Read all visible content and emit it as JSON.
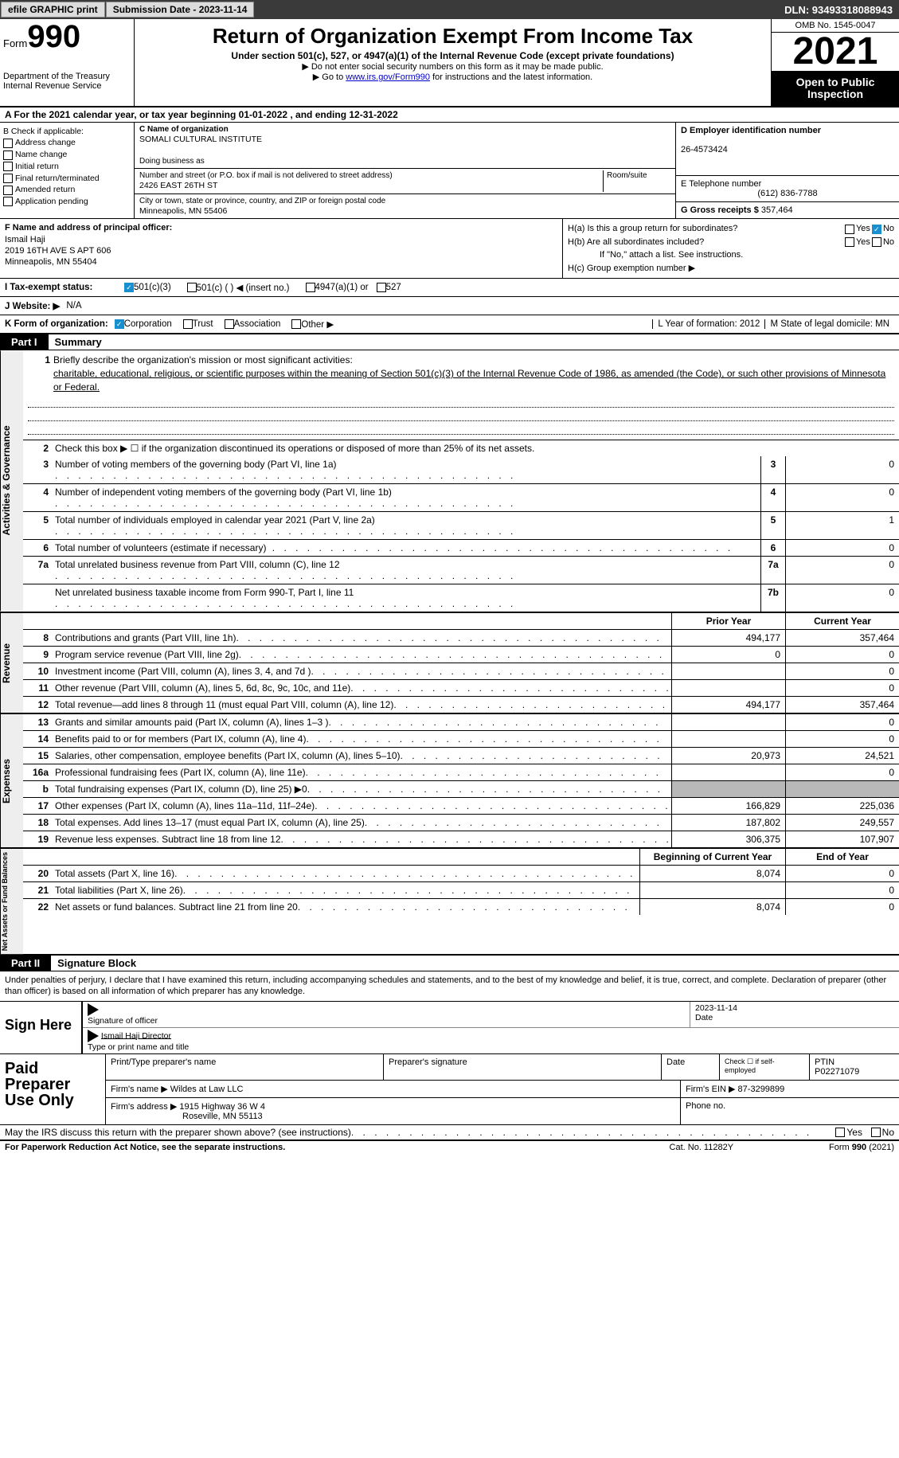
{
  "topbar": {
    "efile": "efile GRAPHIC print",
    "submission": "Submission Date - 2023-11-14",
    "dln": "DLN: 93493318088943"
  },
  "header": {
    "form_word": "Form",
    "form_num": "990",
    "dept": "Department of the Treasury",
    "irs": "Internal Revenue Service",
    "title": "Return of Organization Exempt From Income Tax",
    "subtitle": "Under section 501(c), 527, or 4947(a)(1) of the Internal Revenue Code (except private foundations)",
    "note1": "▶ Do not enter social security numbers on this form as it may be made public.",
    "note2_pre": "▶ Go to ",
    "note2_link": "www.irs.gov/Form990",
    "note2_post": " for instructions and the latest information.",
    "omb": "OMB No. 1545-0047",
    "year": "2021",
    "open": "Open to Public Inspection"
  },
  "rowA": "A For the 2021 calendar year, or tax year beginning 01-01-2022   , and ending 12-31-2022",
  "boxB": {
    "title": "B Check if applicable:",
    "opts": [
      "Address change",
      "Name change",
      "Initial return",
      "Final return/terminated",
      "Amended return",
      "Application pending"
    ]
  },
  "boxC": {
    "name_lbl": "C Name of organization",
    "name": "SOMALI CULTURAL INSTITUTE",
    "dba_lbl": "Doing business as",
    "addr_lbl": "Number and street (or P.O. box if mail is not delivered to street address)",
    "room_lbl": "Room/suite",
    "addr": "2426 EAST 26TH ST",
    "city_lbl": "City or town, state or province, country, and ZIP or foreign postal code",
    "city": "Minneapolis, MN  55406"
  },
  "boxD": {
    "lbl": "D Employer identification number",
    "val": "26-4573424"
  },
  "boxE": {
    "lbl": "E Telephone number",
    "val": "(612) 836-7788"
  },
  "boxG": {
    "lbl": "G Gross receipts $",
    "val": "357,464"
  },
  "boxF": {
    "lbl": "F Name and address of principal officer:",
    "name": "Ismail Haji",
    "addr1": "2019 16TH AVE S APT 606",
    "addr2": "Minneapolis, MN  55404"
  },
  "boxH": {
    "ha": "H(a)  Is this a group return for subordinates?",
    "hb": "H(b)  Are all subordinates included?",
    "hb_note": "If \"No,\" attach a list. See instructions.",
    "hc": "H(c)  Group exemption number ▶",
    "yes": "Yes",
    "no": "No"
  },
  "rowI": {
    "lbl": "I     Tax-exempt status:",
    "o1": "501(c)(3)",
    "o2": "501(c) (  ) ◀ (insert no.)",
    "o3": "4947(a)(1) or",
    "o4": "527"
  },
  "rowJ": {
    "lbl": "J    Website: ▶",
    "val": "N/A"
  },
  "rowK": {
    "lbl": "K Form of organization:",
    "o1": "Corporation",
    "o2": "Trust",
    "o3": "Association",
    "o4": "Other ▶",
    "l": "L Year of formation: 2012",
    "m": "M State of legal domicile: MN"
  },
  "part1": {
    "tag": "Part I",
    "title": "Summary"
  },
  "tabs": {
    "gov": "Activities & Governance",
    "rev": "Revenue",
    "exp": "Expenses",
    "net": "Net Assets or Fund Balances"
  },
  "mission": {
    "lbl": "Briefly describe the organization's mission or most significant activities:",
    "txt": "charitable, educational, religious, or scientific purposes within the meaning of Section 501(c)(3) of the Internal Revenue Code of 1986, as amended (the Code), or such other provisions of Minnesota or Federal."
  },
  "line2": "Check this box ▶ ☐ if the organization discontinued its operations or disposed of more than 25% of its net assets.",
  "lines_gov": [
    {
      "n": "3",
      "t": "Number of voting members of the governing body (Part VI, line 1a)",
      "box": "3",
      "v": "0"
    },
    {
      "n": "4",
      "t": "Number of independent voting members of the governing body (Part VI, line 1b)",
      "box": "4",
      "v": "0"
    },
    {
      "n": "5",
      "t": "Total number of individuals employed in calendar year 2021 (Part V, line 2a)",
      "box": "5",
      "v": "1"
    },
    {
      "n": "6",
      "t": "Total number of volunteers (estimate if necessary)",
      "box": "6",
      "v": "0"
    },
    {
      "n": "7a",
      "t": "Total unrelated business revenue from Part VIII, column (C), line 12",
      "box": "7a",
      "v": "0"
    },
    {
      "n": "",
      "t": "Net unrelated business taxable income from Form 990-T, Part I, line 11",
      "box": "7b",
      "v": "0"
    }
  ],
  "hdr_prior": "Prior Year",
  "hdr_curr": "Current Year",
  "lines_rev": [
    {
      "n": "8",
      "t": "Contributions and grants (Part VIII, line 1h)",
      "p": "494,177",
      "c": "357,464"
    },
    {
      "n": "9",
      "t": "Program service revenue (Part VIII, line 2g)",
      "p": "0",
      "c": "0"
    },
    {
      "n": "10",
      "t": "Investment income (Part VIII, column (A), lines 3, 4, and 7d )",
      "p": "",
      "c": "0"
    },
    {
      "n": "11",
      "t": "Other revenue (Part VIII, column (A), lines 5, 6d, 8c, 9c, 10c, and 11e)",
      "p": "",
      "c": "0"
    },
    {
      "n": "12",
      "t": "Total revenue—add lines 8 through 11 (must equal Part VIII, column (A), line 12)",
      "p": "494,177",
      "c": "357,464"
    }
  ],
  "lines_exp": [
    {
      "n": "13",
      "t": "Grants and similar amounts paid (Part IX, column (A), lines 1–3 )",
      "p": "",
      "c": "0"
    },
    {
      "n": "14",
      "t": "Benefits paid to or for members (Part IX, column (A), line 4)",
      "p": "",
      "c": "0"
    },
    {
      "n": "15",
      "t": "Salaries, other compensation, employee benefits (Part IX, column (A), lines 5–10)",
      "p": "20,973",
      "c": "24,521"
    },
    {
      "n": "16a",
      "t": "Professional fundraising fees (Part IX, column (A), line 11e)",
      "p": "",
      "c": "0"
    },
    {
      "n": "b",
      "t": "Total fundraising expenses (Part IX, column (D), line 25) ▶0",
      "p": "GRAY",
      "c": "GRAY"
    },
    {
      "n": "17",
      "t": "Other expenses (Part IX, column (A), lines 11a–11d, 11f–24e)",
      "p": "166,829",
      "c": "225,036"
    },
    {
      "n": "18",
      "t": "Total expenses. Add lines 13–17 (must equal Part IX, column (A), line 25)",
      "p": "187,802",
      "c": "249,557"
    },
    {
      "n": "19",
      "t": "Revenue less expenses. Subtract line 18 from line 12",
      "p": "306,375",
      "c": "107,907"
    }
  ],
  "hdr_beg": "Beginning of Current Year",
  "hdr_end": "End of Year",
  "lines_net": [
    {
      "n": "20",
      "t": "Total assets (Part X, line 16)",
      "p": "8,074",
      "c": "0"
    },
    {
      "n": "21",
      "t": "Total liabilities (Part X, line 26)",
      "p": "",
      "c": "0"
    },
    {
      "n": "22",
      "t": "Net assets or fund balances. Subtract line 21 from line 20",
      "p": "8,074",
      "c": "0"
    }
  ],
  "part2": {
    "tag": "Part II",
    "title": "Signature Block"
  },
  "penalty": "Under penalties of perjury, I declare that I have examined this return, including accompanying schedules and statements, and to the best of my knowledge and belief, it is true, correct, and complete. Declaration of preparer (other than officer) is based on all information of which preparer has any knowledge.",
  "sign": {
    "here": "Sign Here",
    "sig_lbl": "Signature of officer",
    "date_lbl": "Date",
    "date": "2023-11-14",
    "name": "Ismail Haji  Director",
    "name_lbl": "Type or print name and title"
  },
  "prep": {
    "lbl": "Paid Preparer Use Only",
    "r1c1": "Print/Type preparer's name",
    "r1c2": "Preparer's signature",
    "r1c3": "Date",
    "r1c4_a": "Check ☐ if self-employed",
    "r1c5_lbl": "PTIN",
    "r1c5": "P02271079",
    "r2a": "Firm's name   ▶",
    "r2b": "Wildes at Law LLC",
    "r2c": "Firm's EIN ▶ 87-3299899",
    "r3a": "Firm's address ▶",
    "r3b": "1915 Highway 36 W 4",
    "r3b2": "Roseville, MN  55113",
    "r3c": "Phone no."
  },
  "discuss": "May the IRS discuss this return with the preparer shown above? (see instructions)",
  "footer": {
    "left": "For Paperwork Reduction Act Notice, see the separate instructions.",
    "mid": "Cat. No. 11282Y",
    "right": "Form 990 (2021)"
  }
}
